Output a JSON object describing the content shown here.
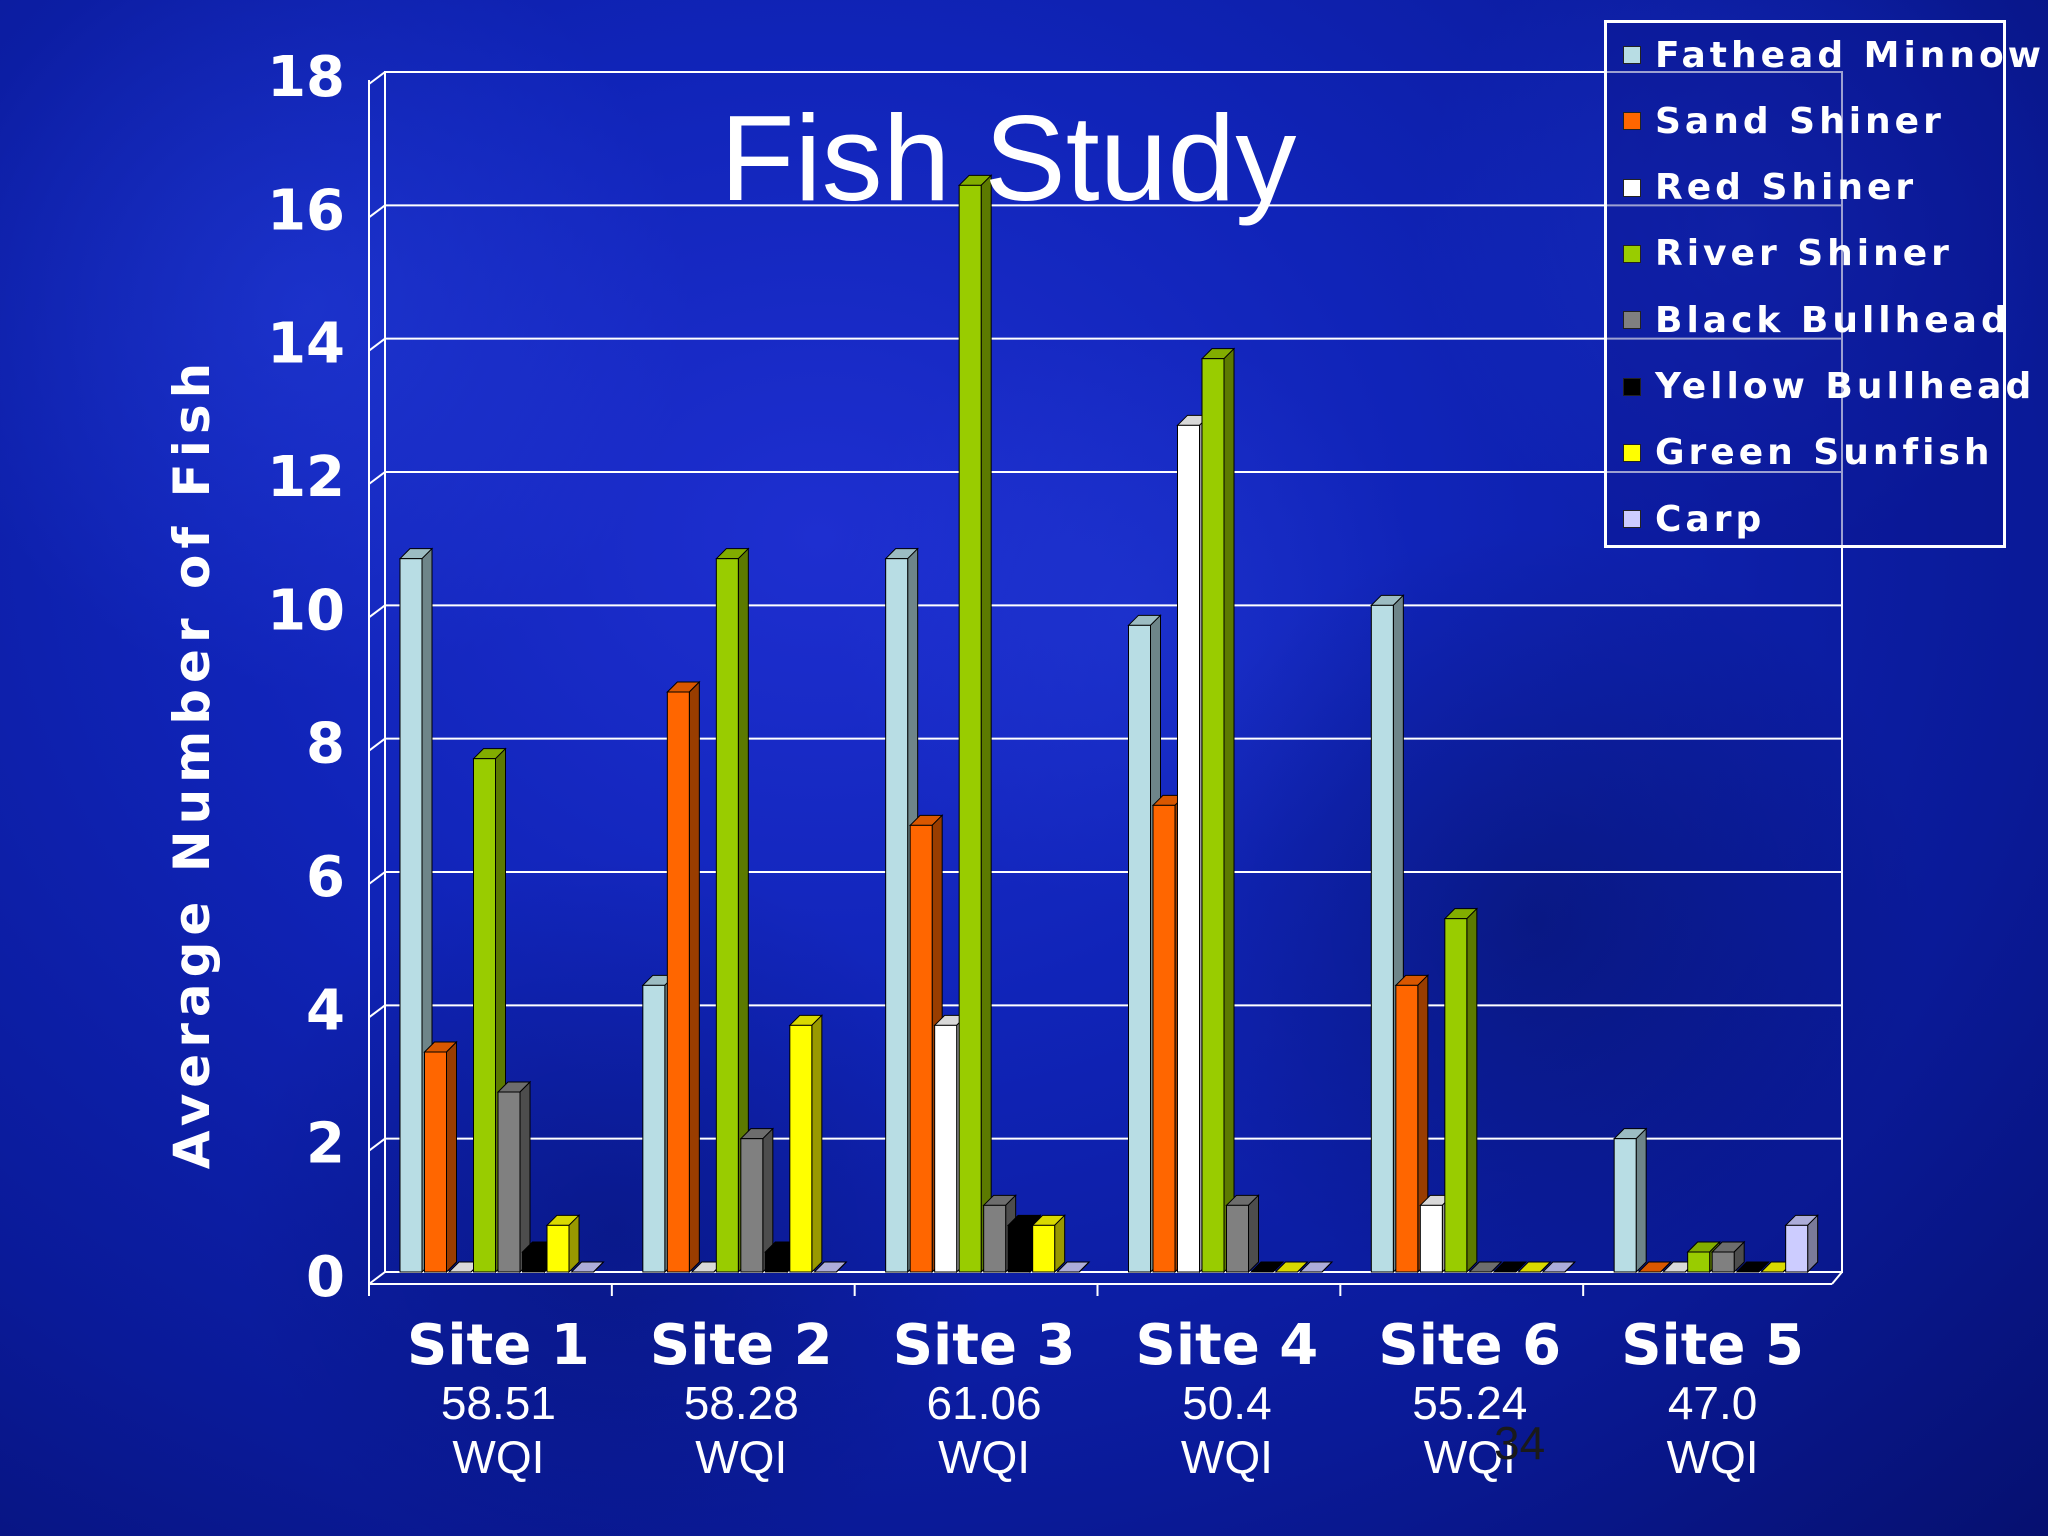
{
  "chart_data": {
    "type": "bar",
    "title": "Fish Study",
    "ylabel": "Average Number of Fish",
    "xlabel": "",
    "ylim": [
      0,
      18
    ],
    "yticks": [
      0,
      2,
      4,
      6,
      8,
      10,
      12,
      14,
      16,
      18
    ],
    "grid": true,
    "legend_position": "top-right",
    "categories": [
      "Site 1",
      "Site 2",
      "Site 3",
      "Site 4",
      "Site 6",
      "Site 5"
    ],
    "category_notes": [
      {
        "value": "58.51",
        "label": "WQI"
      },
      {
        "value": "58.28",
        "label": "WQI"
      },
      {
        "value": "61.06",
        "label": "WQI"
      },
      {
        "value": "50.4",
        "label": "WQI"
      },
      {
        "value": "55.24",
        "label": "WQI"
      },
      {
        "value": "47.0",
        "label": "WQI"
      }
    ],
    "series": [
      {
        "name": "Fathead Minnow",
        "color": "#b8dde4",
        "values": [
          10.7,
          4.3,
          10.7,
          9.7,
          10.0,
          2.0
        ]
      },
      {
        "name": "Sand Shiner",
        "color": "#ff6600",
        "values": [
          3.3,
          8.7,
          6.7,
          7.0,
          4.3,
          0
        ]
      },
      {
        "name": "Red Shiner",
        "color": "#ffffff",
        "values": [
          0,
          0,
          3.7,
          12.7,
          1.0,
          0
        ]
      },
      {
        "name": "River Shiner",
        "color": "#99cc00",
        "values": [
          7.7,
          10.7,
          16.3,
          13.7,
          5.3,
          0.3
        ]
      },
      {
        "name": "Black Bullhead",
        "color": "#808080",
        "values": [
          2.7,
          2.0,
          1.0,
          1.0,
          0,
          0.3
        ]
      },
      {
        "name": "Yellow Bullhead",
        "color": "#000000",
        "values": [
          0.3,
          0.3,
          0.7,
          0,
          0,
          0
        ]
      },
      {
        "name": "Green Sunfish",
        "color": "#ffff00",
        "values": [
          0.7,
          3.7,
          0.7,
          0,
          0,
          0
        ]
      },
      {
        "name": "Carp",
        "color": "#ccccff",
        "values": [
          0,
          0,
          0,
          0,
          0,
          0.7
        ]
      }
    ]
  },
  "page_number": "34"
}
